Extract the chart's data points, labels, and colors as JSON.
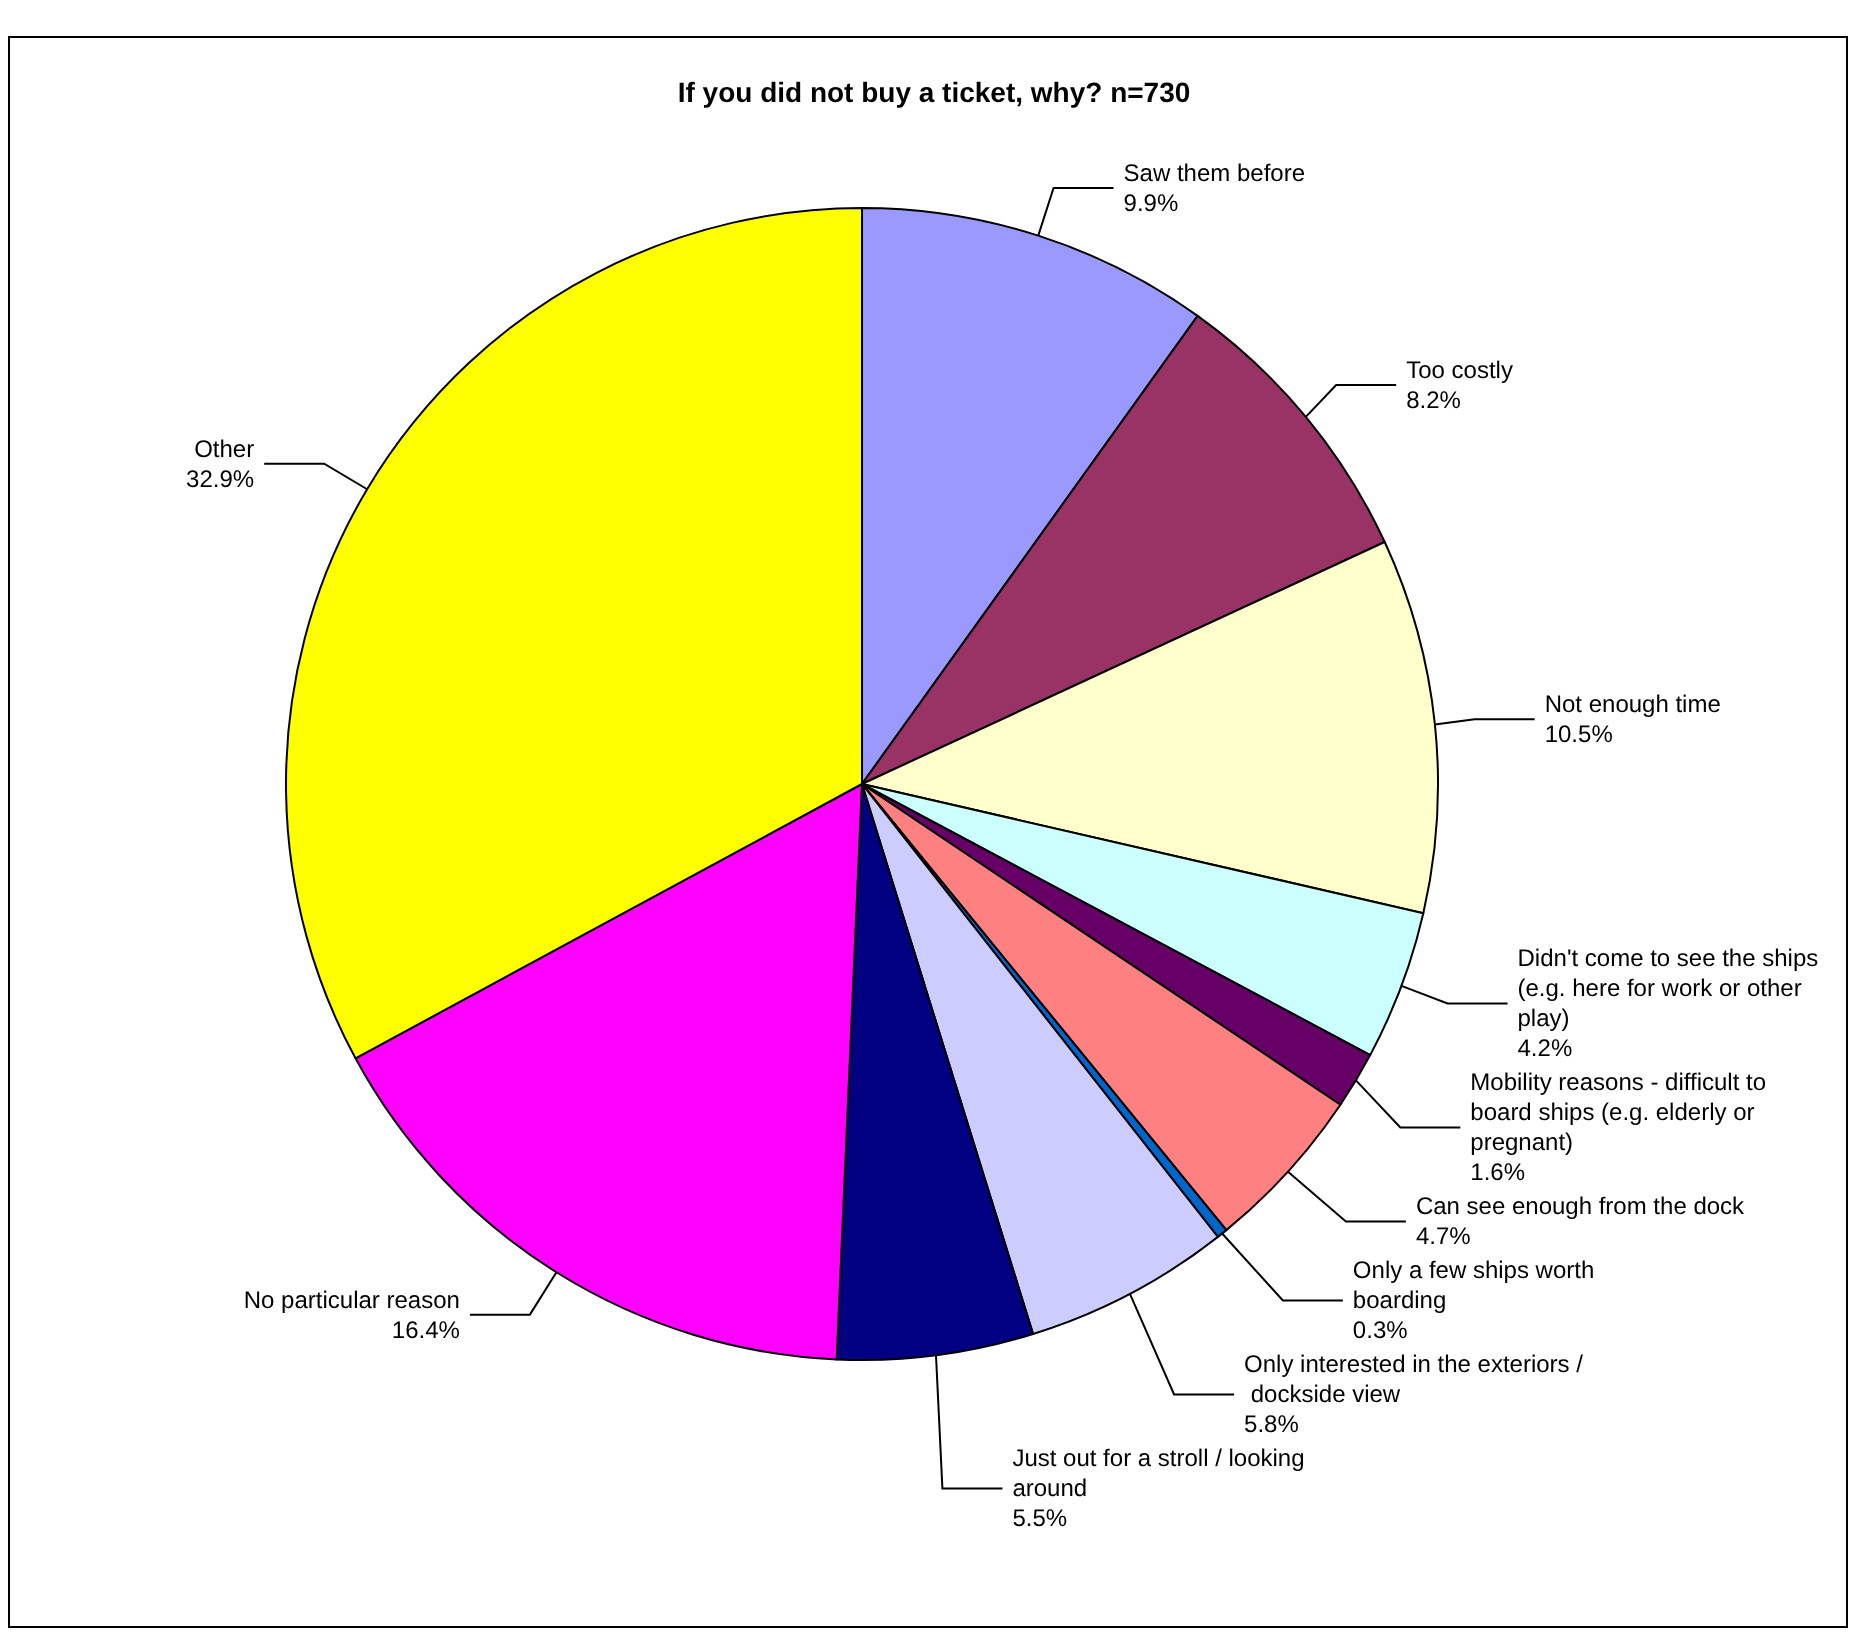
{
  "chart_data": {
    "type": "pie",
    "title": "If you did not buy a ticket, why? n=730",
    "categories": [
      "Saw them before",
      "Too costly",
      "Not enough time",
      "Didn't come to see the ships (e.g. here for work or other play)",
      "Mobility reasons - difficult to board ships (e.g. elderly or pregnant)",
      "Can see enough from the dock",
      "Only a few ships worth boarding",
      "Only interested in the exteriors / dockside view",
      "Just out for a stroll / looking around",
      "No particular reason",
      "Other"
    ],
    "values": [
      9.9,
      8.2,
      10.5,
      4.2,
      1.6,
      4.7,
      0.3,
      5.8,
      5.5,
      16.4,
      32.9
    ],
    "value_labels": [
      "9.9%",
      "8.2%",
      "10.5%",
      "4.2%",
      "1.6%",
      "4.7%",
      "0.3%",
      "5.8%",
      "5.5%",
      "16.4%",
      "32.9%"
    ],
    "colors": [
      "#9999ff",
      "#993366",
      "#ffffcc",
      "#ccffff",
      "#660066",
      "#ff8080",
      "#0066cc",
      "#ccccff",
      "#000080",
      "#ff00ff",
      "#ffff00"
    ],
    "legend": false
  }
}
